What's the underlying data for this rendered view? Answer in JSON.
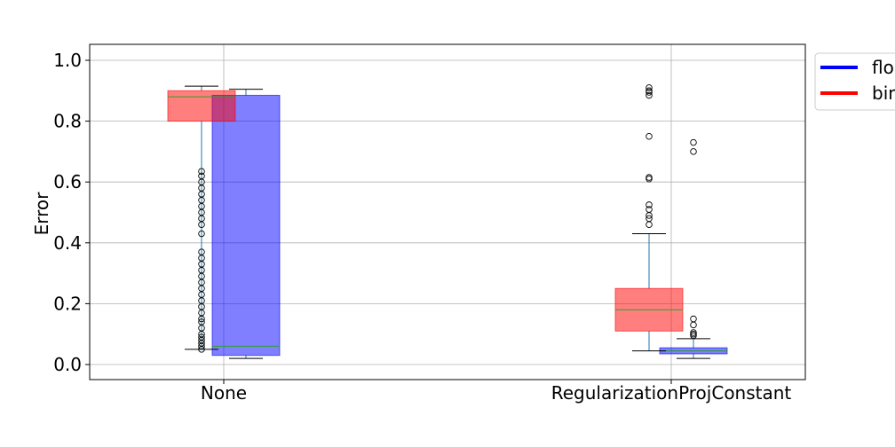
{
  "chart_data": {
    "type": "box",
    "ylabel": "Error",
    "ylim": [
      -0.05,
      1.05
    ],
    "yticks": [
      0.0,
      0.2,
      0.4,
      0.6,
      0.8,
      1.0
    ],
    "ytick_labels": [
      "0.0",
      "0.2",
      "0.4",
      "0.6",
      "0.8",
      "1.0"
    ],
    "categories": [
      "None",
      "RegularizationProjConstant"
    ],
    "grid": true,
    "legend_position": "outside-top-right",
    "legend": [
      {
        "label": "floa",
        "color": "#0000ff"
      },
      {
        "label": "bin",
        "color": "#ff0000"
      }
    ],
    "series": [
      {
        "color": "#0000ff",
        "boxes": [
          {
            "category": "None",
            "whisker_low": 0.02,
            "q1": 0.03,
            "median": 0.06,
            "q3": 0.885,
            "whisker_high": 0.905,
            "outliers": []
          },
          {
            "category": "RegularizationProjConstant",
            "whisker_low": 0.02,
            "q1": 0.035,
            "median": 0.045,
            "q3": 0.055,
            "whisker_high": 0.085,
            "outliers": [
              0.095,
              0.1,
              0.105,
              0.13,
              0.15,
              0.7,
              0.73
            ]
          }
        ]
      },
      {
        "color": "#ff0000",
        "boxes": [
          {
            "category": "None",
            "whisker_low": 0.05,
            "q1": 0.8,
            "median": 0.88,
            "q3": 0.9,
            "whisker_high": 0.915,
            "outliers": [
              0.05,
              0.06,
              0.07,
              0.08,
              0.09,
              0.1,
              0.12,
              0.14,
              0.15,
              0.17,
              0.19,
              0.21,
              0.23,
              0.25,
              0.27,
              0.29,
              0.31,
              0.33,
              0.35,
              0.37,
              0.43,
              0.46,
              0.48,
              0.5,
              0.52,
              0.54,
              0.56,
              0.58,
              0.6,
              0.62,
              0.635
            ]
          },
          {
            "category": "RegularizationProjConstant",
            "whisker_low": 0.045,
            "q1": 0.11,
            "median": 0.18,
            "q3": 0.25,
            "whisker_high": 0.43,
            "outliers": [
              0.46,
              0.48,
              0.49,
              0.51,
              0.525,
              0.61,
              0.615,
              0.75,
              0.885,
              0.895,
              0.9,
              0.91
            ]
          }
        ]
      }
    ]
  }
}
